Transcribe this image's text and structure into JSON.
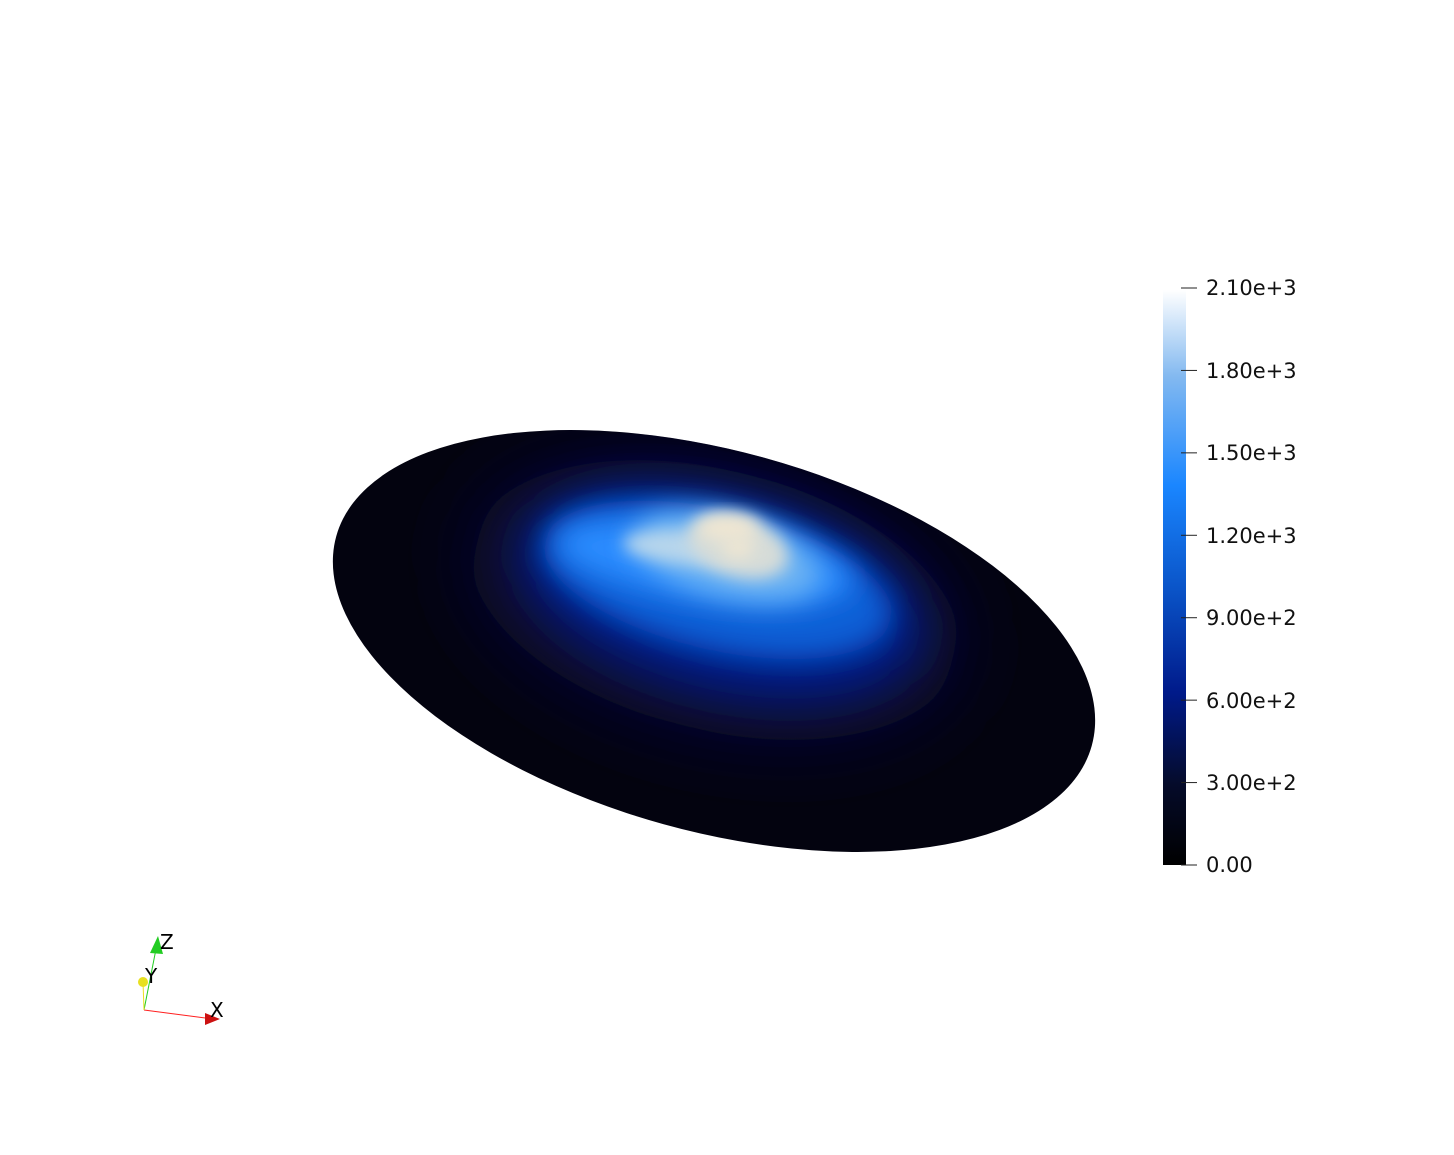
{
  "scalar_bar": {
    "ticks": [
      {
        "label": "2.10e+3",
        "value": 2100
      },
      {
        "label": "1.80e+3",
        "value": 1800
      },
      {
        "label": "1.50e+3",
        "value": 1500
      },
      {
        "label": "1.20e+3",
        "value": 1200
      },
      {
        "label": "9.00e+2",
        "value": 900
      },
      {
        "label": "6.00e+2",
        "value": 600
      },
      {
        "label": "3.00e+2",
        "value": 300
      },
      {
        "label": "0.00",
        "value": 0
      }
    ],
    "range": [
      0,
      2100
    ],
    "colormap": [
      "#000000",
      "#050b2a",
      "#001a8a",
      "#0a54c8",
      "#1a86ff",
      "#83b9f0",
      "#ffffff"
    ]
  },
  "orientation_axes": {
    "x_label": "X",
    "y_label": "Y",
    "z_label": "Z",
    "x_color": "#cc1111",
    "y_color": "#e8e020",
    "z_color": "#22cc22"
  },
  "colors": {
    "background": "#ffffff",
    "surface_base": "#03030f",
    "peak": "#e8dfc8"
  }
}
